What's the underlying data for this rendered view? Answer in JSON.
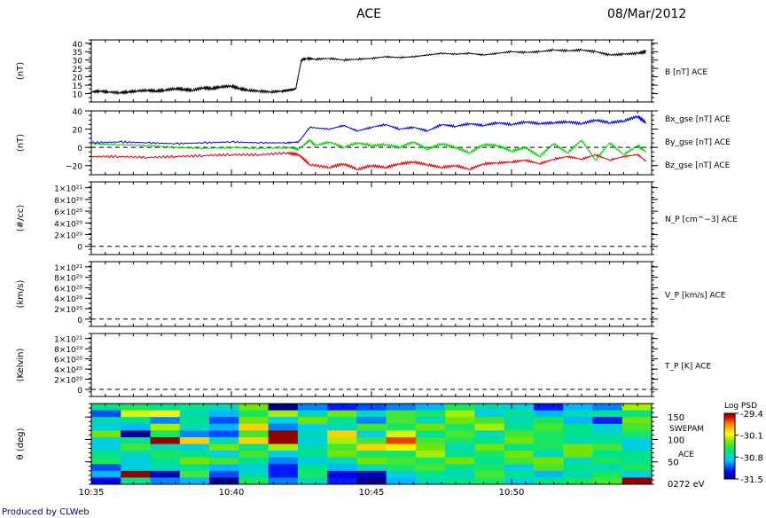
{
  "header": {
    "title": "ACE",
    "date": "08/Mar/2012"
  },
  "footer": {
    "credit": "Produced by CLWeb"
  },
  "time_ticks": [
    "10:35",
    "10:40",
    "10:45",
    "10:50"
  ],
  "colors": {
    "black": "#000000",
    "red": "#dd0000",
    "green": "#00cc00",
    "blue": "#0000cc"
  },
  "colorbar": {
    "title": "Log PSD",
    "ticks": [
      "-29.4",
      "-30.1",
      "-30.8",
      "-31.5"
    ],
    "range": [
      -31.5,
      -29.4
    ]
  },
  "chart_data": [
    {
      "type": "line",
      "panel": "B",
      "ylabel": "(nT)",
      "ylim": [
        5,
        42
      ],
      "yticks": [
        "40",
        "35",
        "30",
        "25",
        "20",
        "15",
        "10"
      ],
      "ytick_values": [
        40,
        35,
        30,
        25,
        20,
        15,
        10
      ],
      "series": [
        {
          "name": "B [nT] ACE",
          "color": "#000000",
          "x": [
            0,
            0.03,
            0.06,
            0.1,
            0.13,
            0.16,
            0.2,
            0.23,
            0.26,
            0.3,
            0.33,
            0.36,
            0.4,
            0.43,
            0.46,
            0.5,
            0.53,
            0.56,
            0.6,
            0.64,
            0.68,
            0.7,
            0.72,
            0.73,
            0.75,
            0.77,
            0.8,
            0.85,
            0.9,
            0.95,
            1.0,
            1.05,
            1.1,
            1.15,
            1.2,
            1.25,
            1.3,
            1.35,
            1.4,
            1.45,
            1.5,
            1.55,
            1.6,
            1.65,
            1.7,
            1.75,
            1.8,
            1.85,
            1.9,
            1.95,
            1.98
          ],
          "y": [
            11,
            11.5,
            11,
            10.5,
            11,
            11.5,
            12,
            11.5,
            12,
            13,
            12.5,
            12,
            13.5,
            13,
            14,
            14.5,
            13,
            12,
            11.5,
            11,
            11.5,
            12,
            12.5,
            13,
            30,
            31,
            30.5,
            31,
            30,
            30.5,
            31,
            32,
            31.5,
            32,
            33,
            34,
            33.5,
            34,
            33,
            34,
            35,
            34.5,
            35,
            36,
            35.5,
            36,
            35,
            33,
            33.5,
            34,
            35
          ]
        }
      ]
    },
    {
      "type": "line",
      "panel": "B components",
      "ylabel": "(nT)",
      "ylim": [
        -30,
        40
      ],
      "yticks": [
        "40",
        "20",
        "0",
        "−20"
      ],
      "ytick_values": [
        40,
        20,
        0,
        -20
      ],
      "zero_line": 0,
      "series": [
        {
          "name": "Bx_gse [nT] ACE",
          "color": "#dd0000",
          "x": [
            0,
            0.1,
            0.2,
            0.3,
            0.4,
            0.5,
            0.6,
            0.7,
            0.74,
            0.78,
            0.85,
            0.9,
            0.95,
            1.0,
            1.05,
            1.1,
            1.15,
            1.2,
            1.25,
            1.3,
            1.35,
            1.4,
            1.45,
            1.5,
            1.55,
            1.6,
            1.65,
            1.7,
            1.75,
            1.8,
            1.85,
            1.9,
            1.95,
            1.98
          ],
          "y": [
            -10,
            -10,
            -11,
            -10,
            -9,
            -8,
            -8,
            -6,
            -8,
            -19,
            -22,
            -18,
            -24,
            -20,
            -22,
            -18,
            -16,
            -19,
            -22,
            -20,
            -24,
            -18,
            -17,
            -16,
            -14,
            -18,
            -13,
            -10,
            -13,
            -8,
            -14,
            -10,
            -8,
            -15
          ]
        },
        {
          "name": "By_gse [nT] ACE",
          "color": "#00cc00",
          "x": [
            0,
            0.1,
            0.2,
            0.3,
            0.4,
            0.5,
            0.6,
            0.7,
            0.74,
            0.78,
            0.8,
            0.85,
            0.9,
            0.95,
            1.0,
            1.05,
            1.1,
            1.15,
            1.2,
            1.25,
            1.3,
            1.35,
            1.4,
            1.45,
            1.5,
            1.55,
            1.6,
            1.65,
            1.7,
            1.75,
            1.8,
            1.85,
            1.9,
            1.95,
            1.98
          ],
          "y": [
            4,
            3,
            2,
            0,
            -1,
            0,
            -1,
            0,
            -2,
            8,
            2,
            6,
            0,
            5,
            2,
            3,
            0,
            6,
            -2,
            4,
            0,
            -6,
            3,
            2,
            -4,
            0,
            -10,
            4,
            -6,
            8,
            -14,
            5,
            -8,
            2,
            -5
          ]
        },
        {
          "name": "Bz_gse [nT] ACE",
          "color": "#0000cc",
          "x": [
            0,
            0.1,
            0.2,
            0.3,
            0.4,
            0.5,
            0.6,
            0.7,
            0.74,
            0.78,
            0.85,
            0.9,
            0.95,
            1.0,
            1.05,
            1.1,
            1.15,
            1.2,
            1.25,
            1.3,
            1.35,
            1.4,
            1.45,
            1.5,
            1.55,
            1.6,
            1.65,
            1.7,
            1.75,
            1.8,
            1.85,
            1.9,
            1.95,
            1.98
          ],
          "y": [
            5,
            6,
            5,
            4,
            5,
            6,
            5,
            5,
            6,
            22,
            20,
            24,
            18,
            22,
            25,
            20,
            22,
            18,
            25,
            23,
            26,
            24,
            27,
            25,
            28,
            26,
            27,
            28,
            26,
            30,
            27,
            29,
            34,
            27
          ]
        }
      ]
    },
    {
      "type": "line",
      "panel": "density",
      "ylabel": "(#/cc)",
      "ylim": [
        -1.4e+20,
        1.1e+21
      ],
      "yticks": [
        "1×10²¹",
        "8×10²⁰",
        "6×10²⁰",
        "4×10²⁰",
        "2×10²⁰",
        "0"
      ],
      "ytick_values": [
        1e+21,
        8e+20,
        6e+20,
        4e+20,
        2e+20,
        0
      ],
      "zero_line": 0,
      "series": [
        {
          "name": "N_P [cm^−3] ACE",
          "color": "#000000",
          "x": [],
          "y": []
        }
      ]
    },
    {
      "type": "line",
      "panel": "velocity",
      "ylabel": "(km/s)",
      "ylim": [
        -1.4e+20,
        1.1e+21
      ],
      "yticks": [
        "1×10²¹",
        "8×10²⁰",
        "6×10²⁰",
        "4×10²⁰",
        "2×10²⁰",
        "0"
      ],
      "ytick_values": [
        1e+21,
        8e+20,
        6e+20,
        4e+20,
        2e+20,
        0
      ],
      "zero_line": 0,
      "series": [
        {
          "name": "V_P [km/s] ACE",
          "color": "#000000",
          "x": [],
          "y": []
        }
      ]
    },
    {
      "type": "line",
      "panel": "temperature",
      "ylabel": "(Kelvin)",
      "ylim": [
        -1.4e+20,
        1.1e+21
      ],
      "yticks": [
        "1×10²¹",
        "8×10²⁰",
        "6×10²⁰",
        "4×10²⁰",
        "2×10²⁰",
        "0"
      ],
      "ytick_values": [
        1e+21,
        8e+20,
        6e+20,
        4e+20,
        2e+20,
        0
      ],
      "zero_line": 0,
      "series": [
        {
          "name": "T_P [K] ACE",
          "color": "#000000",
          "x": [],
          "y": []
        }
      ]
    },
    {
      "type": "heatmap",
      "panel": "SWEPAM pitch angle",
      "ylabel": "θ (deg)",
      "ylim": [
        0,
        180
      ],
      "yticks": [
        "150",
        "100",
        "50"
      ],
      "ytick_values": [
        150,
        100,
        50
      ],
      "right_labels": [
        "SWEPAM",
        "ACE",
        "0272 eV"
      ],
      "columns": 19,
      "rows": 12,
      "values": [
        [
          -30.6,
          -30.5,
          -30.6,
          -30.6,
          -30.7,
          -30.3,
          -31.5,
          -31.0,
          -31.2,
          -31.1,
          -31.0,
          -30.9,
          -30.5,
          -30.7,
          -30.8,
          -31.2,
          -30.9,
          -31.0,
          -30.2
        ],
        [
          -31.1,
          -30.1,
          -30.0,
          -30.7,
          -30.9,
          -30.5,
          -30.2,
          -30.7,
          -30.3,
          -30.7,
          -30.4,
          -30.5,
          -30.2,
          -30.8,
          -30.6,
          -30.9,
          -30.7,
          -30.6,
          -30.6
        ],
        [
          -30.7,
          -30.6,
          -31.0,
          -30.6,
          -31.1,
          -30.3,
          -30.8,
          -30.3,
          -30.6,
          -31.0,
          -30.4,
          -30.7,
          -30.3,
          -30.4,
          -30.7,
          -30.5,
          -30.9,
          -31.2,
          -30.3
        ],
        [
          -30.8,
          -30.9,
          -30.2,
          -30.7,
          -30.9,
          -29.9,
          -31.0,
          -30.8,
          -30.7,
          -30.4,
          -30.5,
          -30.3,
          -30.5,
          -30.2,
          -30.6,
          -30.4,
          -30.6,
          -30.8,
          -30.4
        ],
        [
          -30.3,
          -31.5,
          -30.5,
          -31.0,
          -31.1,
          -30.4,
          -29.4,
          -30.7,
          -29.9,
          -30.8,
          -30.1,
          -30.6,
          -30.4,
          -30.7,
          -30.4,
          -30.5,
          -30.6,
          -30.7,
          -30.5
        ],
        [
          -30.8,
          -30.6,
          -29.4,
          -29.9,
          -30.7,
          -29.9,
          -29.4,
          -30.8,
          -30.2,
          -30.4,
          -29.6,
          -30.4,
          -30.5,
          -30.6,
          -30.3,
          -30.5,
          -30.7,
          -30.6,
          -30.8
        ],
        [
          -30.8,
          -30.4,
          -30.7,
          -30.8,
          -30.3,
          -30.6,
          -30.2,
          -30.7,
          -30.4,
          -29.9,
          -30.0,
          -30.3,
          -30.7,
          -30.3,
          -30.6,
          -30.5,
          -30.3,
          -30.4,
          -30.8
        ],
        [
          -30.6,
          -30.7,
          -30.5,
          -30.6,
          -30.8,
          -30.4,
          -30.8,
          -30.6,
          -30.3,
          -30.5,
          -30.5,
          -30.2,
          -30.6,
          -30.5,
          -30.3,
          -30.7,
          -30.3,
          -30.6,
          -30.6
        ],
        [
          -30.5,
          -30.8,
          -30.6,
          -30.3,
          -30.4,
          -30.6,
          -31.0,
          -30.8,
          -30.7,
          -30.3,
          -30.4,
          -30.5,
          -30.3,
          -30.6,
          -30.4,
          -30.3,
          -30.7,
          -30.5,
          -30.6
        ],
        [
          -31.1,
          -30.8,
          -30.7,
          -30.6,
          -30.9,
          -30.8,
          -31.2,
          -30.6,
          -30.9,
          -30.7,
          -30.5,
          -30.4,
          -30.6,
          -30.5,
          -30.8,
          -30.4,
          -30.6,
          -30.7,
          -30.5
        ],
        [
          -30.9,
          -29.4,
          -31.4,
          -30.4,
          -31.1,
          -30.7,
          -31.2,
          -30.5,
          -31.3,
          -31.4,
          -30.8,
          -30.6,
          -30.7,
          -30.4,
          -30.6,
          -30.9,
          -30.7,
          -30.5,
          -30.8
        ],
        [
          -31.3,
          -30.6,
          -31.0,
          -30.9,
          -31.5,
          -30.5,
          -31.0,
          -30.7,
          -31.2,
          -31.5,
          -30.9,
          -30.7,
          -30.6,
          -30.5,
          -30.8,
          -30.6,
          -30.5,
          -30.4,
          -29.4
        ]
      ]
    }
  ]
}
